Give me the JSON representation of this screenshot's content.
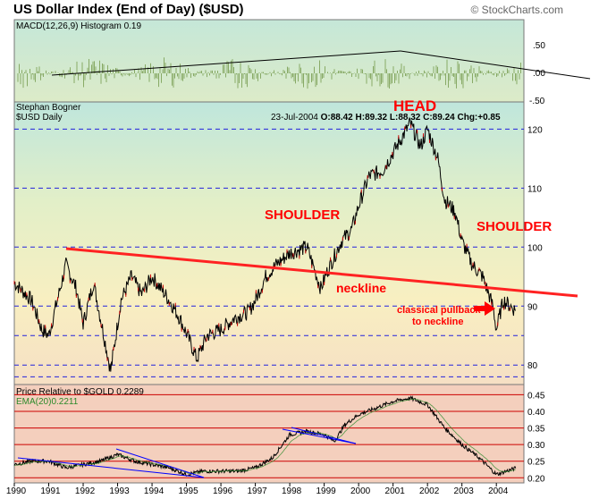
{
  "header": {
    "title": "US Dollar Index (End of Day) ($USD)",
    "credit": "© StockCharts.com"
  },
  "macd_panel": {
    "label": "MACD(12,26,9) Histogram",
    "value": "0.19",
    "ticks": [
      ".50",
      ".00",
      "-.50"
    ]
  },
  "price_panel": {
    "author": "Stephan Bogner",
    "symbol_label": "$USD Daily",
    "quote": "23-Jul-2004",
    "open": "O:88.42",
    "high": "H:89.32",
    "low": "L:88.32",
    "close": "C:89.24",
    "change": "Chg:+0.85",
    "ticks": [
      "120",
      "110",
      "100",
      "90",
      "80"
    ]
  },
  "annotations": {
    "head": "HEAD",
    "left_shoulder": "SHOULDER",
    "right_shoulder": "SHOULDER",
    "neckline": "neckline",
    "pullback_line1": "classical pullback",
    "pullback_line2": "to neckline"
  },
  "ratio_panel": {
    "label": "Price Relative to $GOLD",
    "value": "0.2289",
    "ema_label": "EMA(20)",
    "ema_value": "0.2211",
    "ticks": [
      "0.45",
      "0.40",
      "0.35",
      "0.30",
      "0.25",
      "0.20"
    ]
  },
  "x_axis": {
    "years": [
      "1990",
      "1991",
      "1992",
      "1993",
      "1994",
      "1995",
      "1996",
      "1997",
      "1998",
      "1999",
      "2000",
      "2001",
      "2002",
      "2003",
      "2004"
    ]
  },
  "colors": {
    "annotation_red": "#ff0000",
    "grid_blue": "#0000ff",
    "macd_histogram": "#88aa66",
    "ratio_panel_bg": "#f4cfbd"
  },
  "chart_data": [
    {
      "type": "line",
      "title": "US Dollar Index (End of Day) ($USD)",
      "series": [
        {
          "name": "$USD Daily",
          "x": [
            1990.0,
            1990.5,
            1990.8,
            1991.0,
            1991.5,
            1991.8,
            1992.0,
            1992.3,
            1992.7,
            1992.8,
            1993.1,
            1993.4,
            1993.7,
            1994.0,
            1994.5,
            1994.8,
            1995.1,
            1995.3,
            1995.6,
            1996.0,
            1996.4,
            1996.8,
            1997.0,
            1997.3,
            1997.6,
            1998.0,
            1998.5,
            1998.9,
            1999.1,
            1999.5,
            1999.8,
            2000.0,
            2000.3,
            2000.7,
            2001.0,
            2001.3,
            2001.5,
            2001.8,
            2002.0,
            2002.3,
            2002.5,
            2002.8,
            2003.0,
            2003.3,
            2003.6,
            2003.9,
            2004.0,
            2004.2,
            2004.56
          ],
          "values": [
            94,
            91,
            86,
            85,
            97,
            93,
            87,
            94,
            82,
            79,
            91,
            95,
            92,
            95,
            91,
            88,
            84,
            81,
            85,
            86,
            88,
            89,
            91,
            95,
            97,
            99,
            100,
            93,
            96,
            101,
            103,
            107,
            112,
            113,
            116,
            119,
            121,
            117,
            120,
            115,
            108,
            106,
            101,
            97,
            95,
            90,
            86,
            91,
            89.24
          ]
        }
      ],
      "ylim": [
        77,
        124
      ],
      "xlim": [
        1990,
        2004.8
      ]
    },
    {
      "type": "line",
      "title": "Price Relative to $GOLD",
      "series": [
        {
          "name": "Price Relative to $GOLD",
          "x": [
            1990.0,
            1990.5,
            1991.0,
            1991.5,
            1992.0,
            1992.5,
            1993.0,
            1993.5,
            1994.0,
            1994.5,
            1995.0,
            1995.5,
            1996.0,
            1996.5,
            1997.0,
            1997.5,
            1998.0,
            1998.5,
            1999.0,
            1999.3,
            1999.6,
            2000.0,
            2000.5,
            2001.0,
            2001.5,
            2002.0,
            2002.5,
            2003.0,
            2003.5,
            2004.0,
            2004.56
          ],
          "values": [
            0.24,
            0.25,
            0.25,
            0.23,
            0.24,
            0.25,
            0.27,
            0.25,
            0.24,
            0.23,
            0.21,
            0.22,
            0.22,
            0.22,
            0.23,
            0.26,
            0.33,
            0.34,
            0.33,
            0.31,
            0.36,
            0.39,
            0.41,
            0.43,
            0.44,
            0.42,
            0.35,
            0.3,
            0.26,
            0.21,
            0.2289
          ]
        }
      ],
      "ylim": [
        0.19,
        0.47
      ]
    }
  ]
}
